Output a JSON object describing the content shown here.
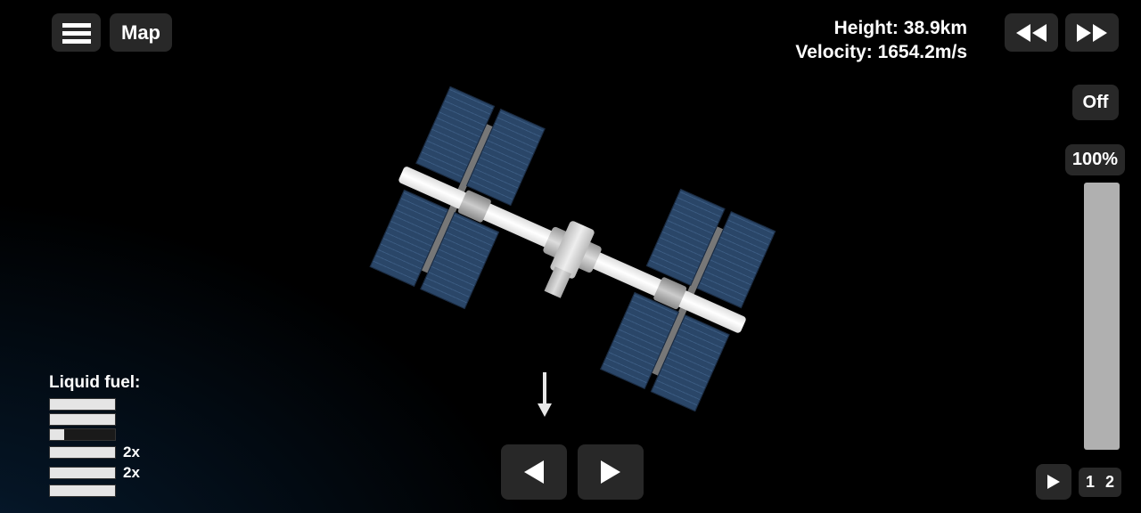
{
  "buttons": {
    "map": "Map",
    "off": "Off"
  },
  "telemetry": {
    "height_label": "Height: ",
    "height_value": "38.9km",
    "velocity_label": "Velocity: ",
    "velocity_value": "1654.2m/s"
  },
  "throttle": {
    "percent": "100%"
  },
  "stages": {
    "s1": "1",
    "s2": "2"
  },
  "fuel": {
    "title": "Liquid fuel:",
    "bars": [
      {
        "fill": 100,
        "label": ""
      },
      {
        "fill": 100,
        "label": ""
      },
      {
        "fill": 22,
        "label": ""
      },
      {
        "fill": 100,
        "label": "2x"
      },
      {
        "fill": 100,
        "label": "2x"
      },
      {
        "fill": 100,
        "label": ""
      }
    ]
  },
  "colors": {
    "panel": "#2a4668",
    "button_bg": "#282828",
    "fuel_fill": "#e5e5e5"
  }
}
